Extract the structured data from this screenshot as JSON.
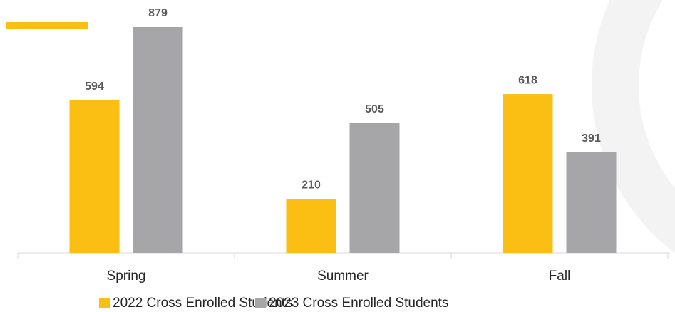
{
  "chart_data": {
    "type": "bar",
    "categories": [
      "Spring",
      "Summer",
      "Fall"
    ],
    "series": [
      {
        "name": "2022 Cross Enrolled Students",
        "color": "#fbbe13",
        "values": [
          594,
          210,
          618
        ]
      },
      {
        "name": "2023 Cross Enrolled Students",
        "color": "#a6a6a8",
        "values": [
          879,
          505,
          391
        ]
      }
    ],
    "legend": "bottom"
  }
}
